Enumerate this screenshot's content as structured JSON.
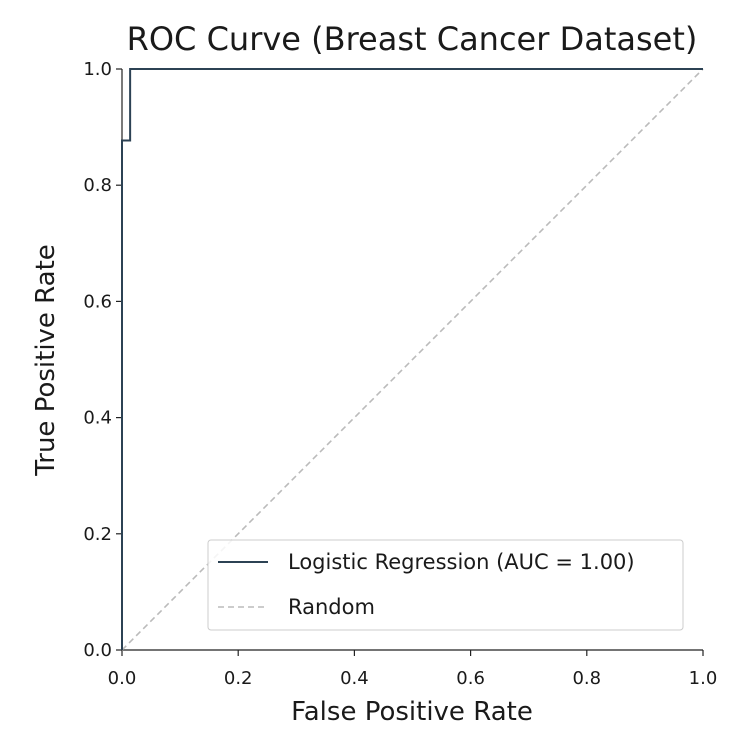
{
  "chart_data": {
    "type": "line",
    "title": "ROC Curve (Breast Cancer Dataset)",
    "xlabel": "False Positive Rate",
    "ylabel": "True Positive Rate",
    "xlim": [
      0.0,
      1.0
    ],
    "ylim": [
      0.0,
      1.0
    ],
    "xticks": [
      "0.0",
      "0.2",
      "0.4",
      "0.6",
      "0.8",
      "1.0"
    ],
    "yticks": [
      "0.0",
      "0.2",
      "0.4",
      "0.6",
      "0.8",
      "1.0"
    ],
    "grid": false,
    "legend_position": "lower-right",
    "series": [
      {
        "name": "Logistic Regression (AUC = 1.00)",
        "style": "solid",
        "color": "#2c4254",
        "x": [
          0.0,
          0.0,
          0.0,
          0.014,
          0.014,
          1.0
        ],
        "y": [
          0.0,
          0.0,
          0.877,
          0.877,
          1.0,
          1.0
        ]
      },
      {
        "name": "Random",
        "style": "dashed",
        "color": "#bbbbbb",
        "x": [
          0.0,
          1.0
        ],
        "y": [
          0.0,
          1.0
        ]
      }
    ]
  }
}
